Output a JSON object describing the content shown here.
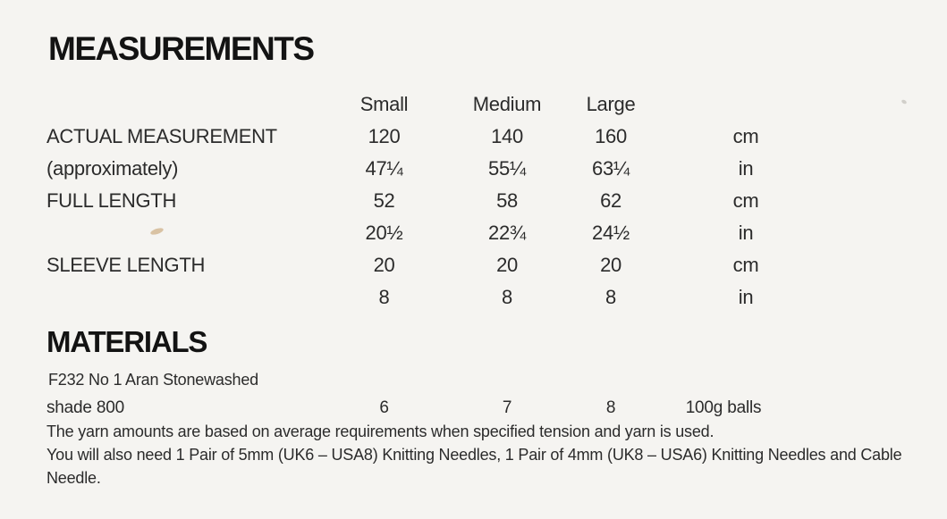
{
  "colors": {
    "background": "#f5f4f1",
    "text": "#2b2b2b",
    "heading": "#131313",
    "smudge": "#c9a77a"
  },
  "measurements": {
    "title": "MEASUREMENTS",
    "size_headers": [
      "Small",
      "Medium",
      "Large"
    ],
    "rows": [
      {
        "label": "ACTUAL MEASUREMENT",
        "small": "120",
        "medium": "140",
        "large": "160",
        "unit": "cm"
      },
      {
        "label": "(approximately)",
        "small": "47¼",
        "medium": "55¼",
        "large": "63¼",
        "unit": "in"
      },
      {
        "label": "FULL LENGTH",
        "small": "52",
        "medium": "58",
        "large": "62",
        "unit": "cm"
      },
      {
        "label": "",
        "small": "20½",
        "medium": "22¾",
        "large": "24½",
        "unit": "in"
      },
      {
        "label": "SLEEVE LENGTH",
        "small": "20",
        "medium": "20",
        "large": "20",
        "unit": "cm"
      },
      {
        "label": "",
        "small": "8",
        "medium": "8",
        "large": "8",
        "unit": "in"
      }
    ]
  },
  "materials": {
    "title": "MATERIALS",
    "yarn_name": "F232 No 1 Aran Stonewashed",
    "yarn_row": {
      "label": "shade 800",
      "small": "6",
      "medium": "7",
      "large": "8",
      "unit": "100g balls"
    },
    "notes": [
      "The yarn amounts are based on average requirements when specified tension and yarn is used.",
      "You will also need 1 Pair of 5mm (UK6 – USA8) Knitting Needles, 1 Pair of 4mm (UK8 – USA6) Knitting Needles and Cable Needle."
    ]
  }
}
